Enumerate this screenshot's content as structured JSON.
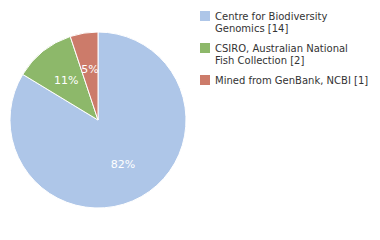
{
  "chart_data": {
    "type": "pie",
    "categories": [
      "Centre for Biodiversity\nGenomics [14]",
      "CSIRO, Australian National\nFish Collection [2]",
      "Mined from GenBank, NCBI [1]"
    ],
    "values": [
      82,
      11,
      5
    ],
    "value_labels": [
      "82%",
      "11%",
      "5%"
    ],
    "colors": [
      "#aec6e8",
      "#8db86a",
      "#cc7b6a"
    ],
    "data_labels": true,
    "legend": "right"
  }
}
